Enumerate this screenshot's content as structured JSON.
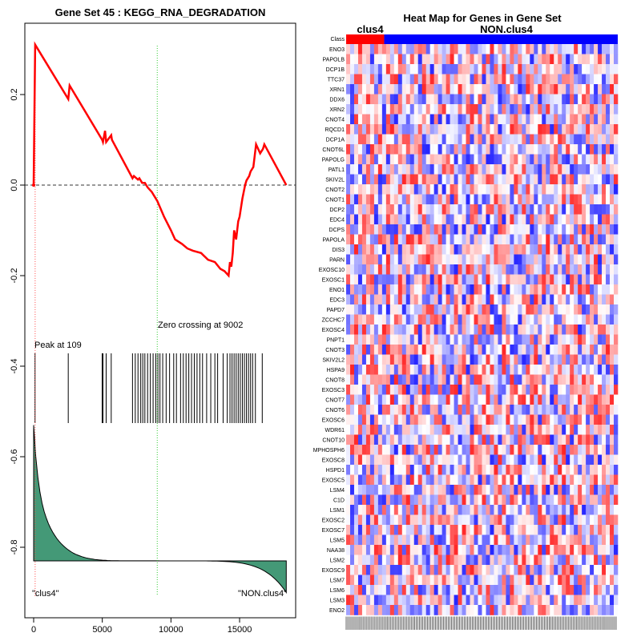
{
  "chart_data": [
    {
      "type": "line",
      "title": "Gene Set  45 : KEGG_RNA_DEGRADATION",
      "xlabel": "",
      "ylabel": "",
      "xlim": [
        0,
        18500
      ],
      "ylim": [
        -0.93,
        0.33
      ],
      "x_ticks": [
        0,
        5000,
        10000,
        15000
      ],
      "x_tick_labels": [
        "0",
        "5000",
        "10000",
        "15000"
      ],
      "y_ticks": [
        0.2,
        0.0,
        -0.2,
        -0.4,
        -0.6,
        -0.8
      ],
      "y_tick_labels": [
        "0.2",
        "0.0",
        "-0.2",
        "-0.4",
        "-0.6",
        "-0.8"
      ],
      "series": [
        {
          "color": "#ff0000",
          "x": [
            0,
            109,
            2520,
            2620,
            4990,
            5050,
            5200,
            5280,
            5650,
            5700,
            7200,
            7300,
            7600,
            7700,
            7900,
            8100,
            8300,
            8600,
            9002,
            9500,
            10000,
            10300,
            10800,
            11200,
            11600,
            12200,
            12700,
            13200,
            13600,
            13900,
            14200,
            14300,
            14400,
            14500,
            14600,
            14750,
            14900,
            15000,
            15200,
            15400,
            15500,
            15700,
            15800,
            16000,
            16200,
            16500,
            16700,
            16800,
            18400
          ],
          "y": [
            0.0,
            0.31,
            0.19,
            0.22,
            0.1,
            0.095,
            0.12,
            0.095,
            0.11,
            0.1,
            0.015,
            0.02,
            0.012,
            0.015,
            0.005,
            0.005,
            -0.005,
            -0.015,
            -0.035,
            -0.07,
            -0.1,
            -0.12,
            -0.13,
            -0.14,
            -0.145,
            -0.15,
            -0.165,
            -0.17,
            -0.185,
            -0.19,
            -0.2,
            -0.17,
            -0.18,
            -0.15,
            -0.1,
            -0.12,
            -0.08,
            -0.07,
            -0.03,
            0.0,
            0.01,
            0.02,
            0.03,
            0.04,
            0.09,
            0.07,
            0.08,
            0.09,
            0.0
          ]
        }
      ],
      "zero_line": 0.0,
      "peak": {
        "x": 109,
        "label": "Peak at 109"
      },
      "zero_crossing": {
        "x": 9002,
        "label": "Zero crossing at 9002"
      },
      "hit_positions": [
        100,
        2520,
        4990,
        5050,
        5280,
        5650,
        7200,
        7400,
        7600,
        7800,
        7950,
        8100,
        8300,
        8500,
        8700,
        8900,
        9050,
        9200,
        9400,
        9650,
        9900,
        10200,
        10400,
        10700,
        10900,
        11100,
        11300,
        11500,
        11700,
        11900,
        12100,
        12300,
        12600,
        12900,
        13200,
        13400,
        13800,
        14100,
        14300,
        14450,
        14600,
        14750,
        14900,
        15050,
        15200,
        15350,
        15500,
        15650,
        15800,
        15950,
        16150,
        16650
      ],
      "ranked_metric": {
        "color": "#449977",
        "start": -0.53,
        "baseline": -0.83,
        "end": -0.9
      },
      "group_labels": [
        "\"clus4\"",
        "\"NON.clus4\""
      ]
    },
    {
      "type": "heatmap",
      "title": "Heat Map for Genes in Gene Set",
      "class_label": "Class",
      "class_groups": [
        {
          "name": "clus4",
          "color": "#ff0000",
          "fraction": 0.14
        },
        {
          "name": "NON.clus4",
          "color": "#0000ff",
          "fraction": 0.86
        }
      ],
      "genes": [
        "ENO3",
        "PAPOLB",
        "DCP1B",
        "TTC37",
        "XRN1",
        "DDX6",
        "XRN2",
        "CNOT4",
        "RQCD1",
        "DCP1A",
        "CNOT6L",
        "PAPOLG",
        "PATL1",
        "SKIV2L",
        "CNOT2",
        "CNOT1",
        "DCP2",
        "EDC4",
        "DCPS",
        "PAPOLA",
        "DIS3",
        "PARN",
        "EXOSC10",
        "EXOSC1",
        "ENO1",
        "EDC3",
        "PAPD7",
        "ZCCHC7",
        "EXOSC4",
        "PNPT1",
        "CNOT3",
        "SKIV2L2",
        "HSPA9",
        "CNOT8",
        "EXOSC3",
        "CNOT7",
        "CNOT6",
        "EXOSC6",
        "WDR61",
        "CNOT10",
        "MPHOSPH6",
        "EXOSC8",
        "HSPD1",
        "EXOSC5",
        "LSM4",
        "C1D",
        "LSM1",
        "EXOSC2",
        "EXOSC7",
        "LSM5",
        "NAA38",
        "LSM2",
        "EXOSC9",
        "LSM7",
        "LSM6",
        "LSM3",
        "ENO2"
      ],
      "color_low": "#0000ff",
      "color_mid": "#ffffff",
      "color_high": "#ff0000"
    }
  ]
}
